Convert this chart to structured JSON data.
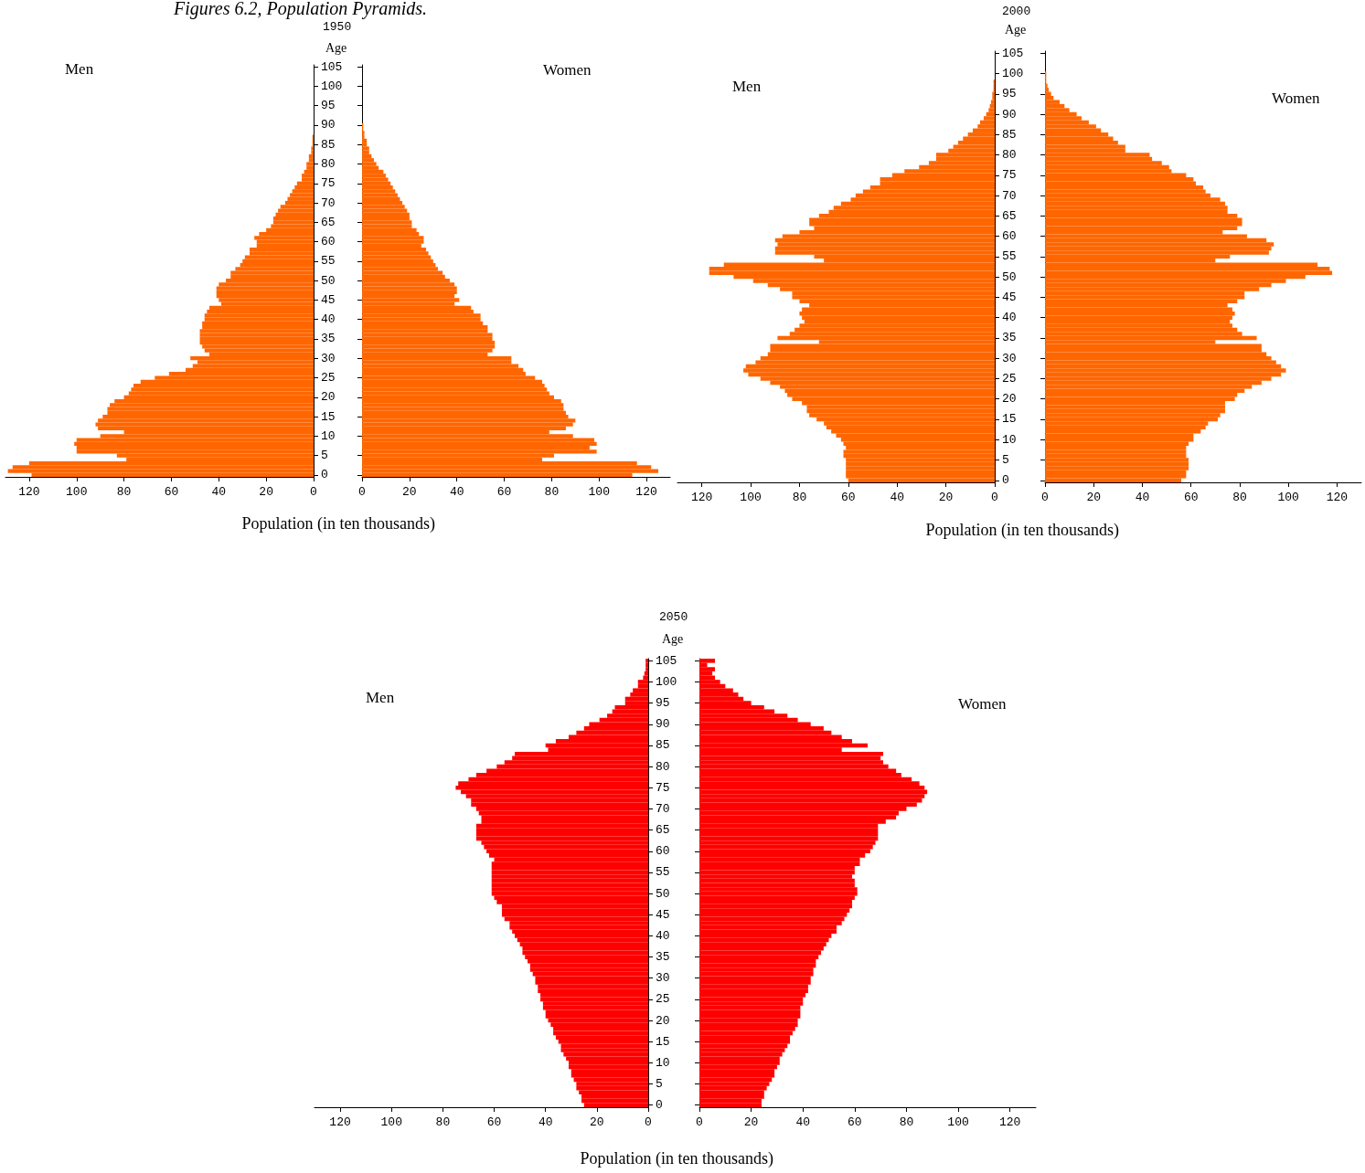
{
  "chart_data": [
    {
      "type": "bar",
      "orientation": "horizontal",
      "title": "Men",
      "subtitle": "1950",
      "ylabel": "Age",
      "xlabel": "Population (in ten thousands)",
      "annotations": [
        "Figures 6.2, Population Pyramids."
      ],
      "color": "#ff6600",
      "xlim": [
        130,
        0
      ],
      "xticks": [
        0,
        20,
        40,
        60,
        80,
        100,
        120
      ],
      "categories": [
        "105",
        null,
        null,
        null,
        null,
        "100",
        null,
        null,
        null,
        null,
        "95",
        null,
        null,
        null,
        null,
        "90",
        null,
        null,
        null,
        null,
        "85",
        null,
        null,
        null,
        null,
        "80",
        null,
        null,
        null,
        null,
        "75",
        null,
        null,
        null,
        null,
        "70",
        null,
        null,
        null,
        null,
        "65",
        null,
        null,
        null,
        null,
        "60",
        null,
        null,
        null,
        null,
        "55",
        null,
        null,
        null,
        null,
        "50",
        null,
        null,
        null,
        null,
        "45",
        null,
        null,
        null,
        null,
        "40",
        null,
        null,
        null,
        null,
        "35",
        null,
        null,
        null,
        null,
        "30",
        null,
        null,
        null,
        null,
        "25",
        null,
        null,
        null,
        null,
        "20",
        null,
        null,
        null,
        null,
        "15",
        null,
        null,
        null,
        null,
        "10",
        null,
        null,
        null,
        null,
        "5",
        null,
        null,
        null,
        null,
        "0"
      ],
      "values": [
        0,
        0,
        0,
        0,
        0,
        0,
        0,
        0,
        0,
        0,
        0,
        0,
        0,
        0,
        0,
        0,
        0,
        0,
        0.5,
        0.5,
        0.5,
        1,
        1,
        2,
        2,
        3,
        3,
        4,
        5,
        5,
        7,
        8,
        9,
        10,
        11,
        12,
        14,
        15,
        16,
        17,
        17,
        18,
        20,
        23,
        25,
        24,
        24,
        27,
        27,
        29,
        30,
        31,
        33,
        35,
        35,
        37,
        40,
        41,
        41,
        41,
        40,
        39,
        44,
        45,
        46,
        46,
        47,
        47,
        48,
        48,
        48,
        48,
        47,
        46,
        44,
        52,
        49,
        51,
        54,
        61,
        67,
        73,
        76,
        77,
        78,
        80,
        84,
        86,
        87,
        87,
        89,
        91,
        92,
        91,
        80,
        90,
        100,
        101,
        100,
        100,
        83,
        79,
        120,
        127,
        129,
        119
      ]
    },
    {
      "type": "bar",
      "orientation": "horizontal",
      "title": "Women",
      "color": "#ff6600",
      "xlim": [
        0,
        130
      ],
      "xticks": [
        0,
        20,
        40,
        60,
        80,
        100,
        120
      ],
      "tick_labels": "x",
      "categories": [
        "105",
        null,
        null,
        null,
        null,
        "100",
        null,
        null,
        null,
        null,
        "95",
        null,
        null,
        null,
        null,
        "90",
        null,
        null,
        null,
        null,
        "85",
        null,
        null,
        null,
        null,
        "80",
        null,
        null,
        null,
        null,
        "75",
        null,
        null,
        null,
        null,
        "70",
        null,
        null,
        null,
        null,
        "65",
        null,
        null,
        null,
        null,
        "60",
        null,
        null,
        null,
        null,
        "55",
        null,
        null,
        null,
        null,
        "50",
        null,
        null,
        null,
        null,
        "45",
        null,
        null,
        null,
        null,
        "40",
        null,
        null,
        null,
        null,
        "35",
        null,
        null,
        null,
        null,
        "30",
        null,
        null,
        null,
        null,
        "25",
        null,
        null,
        null,
        null,
        "20",
        null,
        null,
        null,
        null,
        "15",
        null,
        null,
        null,
        null,
        "10",
        null,
        null,
        null,
        null,
        "5",
        null,
        null,
        null,
        null,
        "0"
      ],
      "values": [
        0,
        0,
        0,
        0,
        0,
        0,
        0,
        0,
        0,
        0,
        0,
        0,
        0,
        0,
        0,
        0.5,
        0.5,
        1,
        1,
        2,
        2,
        3,
        3,
        4,
        5,
        6,
        7,
        9,
        10,
        11,
        12,
        13,
        14,
        15,
        16,
        17,
        18,
        19,
        20,
        20,
        21,
        21,
        23,
        24,
        26,
        26,
        25,
        27,
        28,
        29,
        30,
        31,
        32,
        34,
        35,
        37,
        39,
        40,
        40,
        39,
        41,
        39,
        46,
        47,
        50,
        50,
        51,
        53,
        53,
        55,
        55,
        56,
        56,
        55,
        53,
        63,
        63,
        66,
        68,
        69,
        73,
        76,
        77,
        78,
        79,
        81,
        84,
        85,
        85,
        86,
        87,
        90,
        89,
        86,
        79,
        89,
        98,
        99,
        96,
        99,
        81,
        76,
        116,
        122,
        125,
        114
      ]
    },
    {
      "type": "bar",
      "orientation": "horizontal",
      "title": "Men",
      "subtitle": "2000",
      "ylabel": "Age",
      "xlabel": "Population (in ten thousands)",
      "color": "#ff6600",
      "xlim": [
        130,
        0
      ],
      "xticks": [
        0,
        20,
        40,
        60,
        80,
        100,
        120
      ],
      "categories": [
        "105",
        null,
        null,
        null,
        null,
        "100",
        null,
        null,
        null,
        null,
        "95",
        null,
        null,
        null,
        null,
        "90",
        null,
        null,
        null,
        null,
        "85",
        null,
        null,
        null,
        null,
        "80",
        null,
        null,
        null,
        null,
        "75",
        null,
        null,
        null,
        null,
        "70",
        null,
        null,
        null,
        null,
        "65",
        null,
        null,
        null,
        null,
        "60",
        null,
        null,
        null,
        null,
        "55",
        null,
        null,
        null,
        null,
        "50",
        null,
        null,
        null,
        null,
        "45",
        null,
        null,
        null,
        null,
        "40",
        null,
        null,
        null,
        null,
        "35",
        null,
        null,
        null,
        null,
        "30",
        null,
        null,
        null,
        null,
        "25",
        null,
        null,
        null,
        null,
        "20",
        null,
        null,
        null,
        null,
        "15",
        null,
        null,
        null,
        null,
        "10",
        null,
        null,
        null,
        null,
        "5",
        null,
        null,
        null,
        null,
        "0"
      ],
      "values": [
        0,
        0,
        0,
        0,
        0,
        0,
        0,
        0.5,
        0.5,
        0.5,
        1,
        1,
        1.5,
        2,
        2.5,
        3.5,
        4.5,
        6,
        7,
        9,
        11,
        13,
        15,
        17,
        19,
        24,
        24,
        27,
        31,
        37,
        42,
        47,
        47,
        51,
        54,
        57,
        59,
        63,
        66,
        68,
        72,
        76,
        76,
        74,
        80,
        87,
        90,
        89,
        90,
        90,
        74,
        70,
        111,
        117,
        117,
        107,
        99,
        93,
        88,
        83,
        83,
        80,
        76,
        79,
        80,
        79,
        78,
        80,
        82,
        84,
        89,
        72,
        92,
        92,
        93,
        96,
        98,
        102,
        103,
        101,
        96,
        92,
        88,
        86,
        85,
        83,
        79,
        77,
        77,
        76,
        73,
        70,
        69,
        67,
        65,
        63,
        62,
        61,
        62,
        62,
        61,
        61,
        61,
        61,
        61,
        60
      ]
    },
    {
      "type": "bar",
      "orientation": "horizontal",
      "title": "Women",
      "color": "#ff6600",
      "xlim": [
        0,
        130
      ],
      "xticks": [
        0,
        20,
        40,
        60,
        80,
        100,
        120
      ],
      "tick_labels": "x",
      "categories": [
        "105",
        null,
        null,
        null,
        null,
        "100",
        null,
        null,
        null,
        null,
        "95",
        null,
        null,
        null,
        null,
        "90",
        null,
        null,
        null,
        null,
        "85",
        null,
        null,
        null,
        null,
        "80",
        null,
        null,
        null,
        null,
        "75",
        null,
        null,
        null,
        null,
        "70",
        null,
        null,
        null,
        null,
        "65",
        null,
        null,
        null,
        null,
        "60",
        null,
        null,
        null,
        null,
        "55",
        null,
        null,
        null,
        null,
        "50",
        null,
        null,
        null,
        null,
        "45",
        null,
        null,
        null,
        null,
        "40",
        null,
        null,
        null,
        null,
        "35",
        null,
        null,
        null,
        null,
        "30",
        null,
        null,
        null,
        null,
        "25",
        null,
        null,
        null,
        null,
        "20",
        null,
        null,
        null,
        null,
        "15",
        null,
        null,
        null,
        null,
        "10",
        null,
        null,
        null,
        null,
        "5",
        null,
        null,
        null,
        null,
        "0"
      ],
      "values": [
        0,
        0,
        0,
        0,
        0,
        0.5,
        0.5,
        0.5,
        1,
        1.5,
        2.5,
        3.5,
        6,
        8,
        10,
        13,
        15,
        18,
        21,
        23,
        26,
        28,
        30,
        33,
        33,
        43,
        44,
        48,
        51,
        52,
        58,
        61,
        62,
        65,
        66,
        68,
        72,
        74,
        75,
        75,
        79,
        81,
        81,
        79,
        73,
        83,
        91,
        94,
        93,
        92,
        76,
        70,
        112,
        117,
        118,
        107,
        99,
        93,
        88,
        82,
        82,
        79,
        75,
        77,
        78,
        77,
        76,
        77,
        79,
        81,
        87,
        70,
        89,
        89,
        91,
        93,
        95,
        97,
        99,
        97,
        93,
        89,
        85,
        82,
        79,
        78,
        74,
        74,
        74,
        72,
        71,
        67,
        66,
        64,
        61,
        61,
        59,
        58,
        58,
        58,
        59,
        59,
        59,
        58,
        58,
        56
      ]
    },
    {
      "type": "bar",
      "orientation": "horizontal",
      "title": "Men",
      "subtitle": "2050",
      "ylabel": "Age",
      "xlabel": "Population (in ten thousands)",
      "color": "#ff0000",
      "xlim": [
        130,
        0
      ],
      "xticks": [
        0,
        20,
        40,
        60,
        80,
        100,
        120
      ],
      "categories": [
        "105",
        null,
        null,
        null,
        null,
        "100",
        null,
        null,
        null,
        null,
        "95",
        null,
        null,
        null,
        null,
        "90",
        null,
        null,
        null,
        null,
        "85",
        null,
        null,
        null,
        null,
        "80",
        null,
        null,
        null,
        null,
        "75",
        null,
        null,
        null,
        null,
        "70",
        null,
        null,
        null,
        null,
        "65",
        null,
        null,
        null,
        null,
        "60",
        null,
        null,
        null,
        null,
        "55",
        null,
        null,
        null,
        null,
        "50",
        null,
        null,
        null,
        null,
        "45",
        null,
        null,
        null,
        null,
        "40",
        null,
        null,
        null,
        null,
        "35",
        null,
        null,
        null,
        null,
        "30",
        null,
        null,
        null,
        null,
        "25",
        null,
        null,
        null,
        null,
        "20",
        null,
        null,
        null,
        null,
        "15",
        null,
        null,
        null,
        null,
        "10",
        null,
        null,
        null,
        null,
        "5",
        null,
        null,
        null,
        null,
        "0"
      ],
      "values": [
        1,
        1,
        1,
        1.5,
        2,
        4,
        4,
        6,
        7,
        9,
        9,
        13,
        14,
        16,
        19,
        23,
        25,
        28,
        31,
        36,
        40,
        39,
        52,
        53,
        56,
        59,
        63,
        67,
        70,
        74,
        75,
        73,
        71,
        69,
        69,
        67,
        66,
        65,
        65,
        67,
        67,
        67,
        67,
        65,
        64,
        63,
        62,
        60,
        61,
        61,
        61,
        61,
        61,
        61,
        61,
        61,
        60,
        59,
        57,
        57,
        57,
        56,
        54,
        54,
        53,
        52,
        51,
        50,
        49,
        49,
        48,
        47,
        46,
        46,
        45,
        44,
        44,
        43,
        43,
        42,
        42,
        41,
        41,
        40,
        40,
        39,
        38,
        37,
        37,
        36,
        35,
        34,
        34,
        33,
        32,
        31,
        31,
        30,
        30,
        29,
        28,
        28,
        27,
        26,
        26,
        25
      ]
    },
    {
      "type": "bar",
      "orientation": "horizontal",
      "title": "Women",
      "color": "#ff0000",
      "xlim": [
        0,
        130
      ],
      "xticks": [
        0,
        20,
        40,
        60,
        80,
        100,
        120
      ],
      "tick_labels": "x",
      "categories": [
        "105",
        null,
        null,
        null,
        null,
        "100",
        null,
        null,
        null,
        null,
        "95",
        null,
        null,
        null,
        null,
        "90",
        null,
        null,
        null,
        null,
        "85",
        null,
        null,
        null,
        null,
        "80",
        null,
        null,
        null,
        null,
        "75",
        null,
        null,
        null,
        null,
        "70",
        null,
        null,
        null,
        null,
        "65",
        null,
        null,
        null,
        null,
        "60",
        null,
        null,
        null,
        null,
        "55",
        null,
        null,
        null,
        null,
        "50",
        null,
        null,
        null,
        null,
        "45",
        null,
        null,
        null,
        null,
        "40",
        null,
        null,
        null,
        null,
        "35",
        null,
        null,
        null,
        null,
        "30",
        null,
        null,
        null,
        null,
        "25",
        null,
        null,
        null,
        null,
        "20",
        null,
        null,
        null,
        null,
        "15",
        null,
        null,
        null,
        null,
        "10",
        null,
        null,
        null,
        null,
        "5",
        null,
        null,
        null,
        null,
        "0"
      ],
      "values": [
        6,
        3,
        6,
        5,
        6,
        8,
        10,
        13,
        15,
        17,
        20,
        25,
        29,
        34,
        38,
        43,
        48,
        51,
        55,
        59,
        65,
        55,
        71,
        70,
        71,
        73,
        76,
        78,
        82,
        85,
        87,
        88,
        87,
        86,
        84,
        80,
        77,
        76,
        72,
        69,
        69,
        69,
        69,
        68,
        67,
        66,
        64,
        62,
        62,
        60,
        60,
        59,
        60,
        60,
        61,
        61,
        60,
        59,
        59,
        58,
        57,
        56,
        55,
        53,
        53,
        51,
        50,
        49,
        48,
        47,
        46,
        45,
        45,
        44,
        44,
        43,
        43,
        42,
        42,
        41,
        40,
        40,
        39,
        39,
        39,
        38,
        38,
        37,
        36,
        35,
        35,
        34,
        33,
        32,
        31,
        31,
        30,
        29,
        29,
        28,
        27,
        26,
        25,
        25,
        24,
        24
      ]
    }
  ]
}
